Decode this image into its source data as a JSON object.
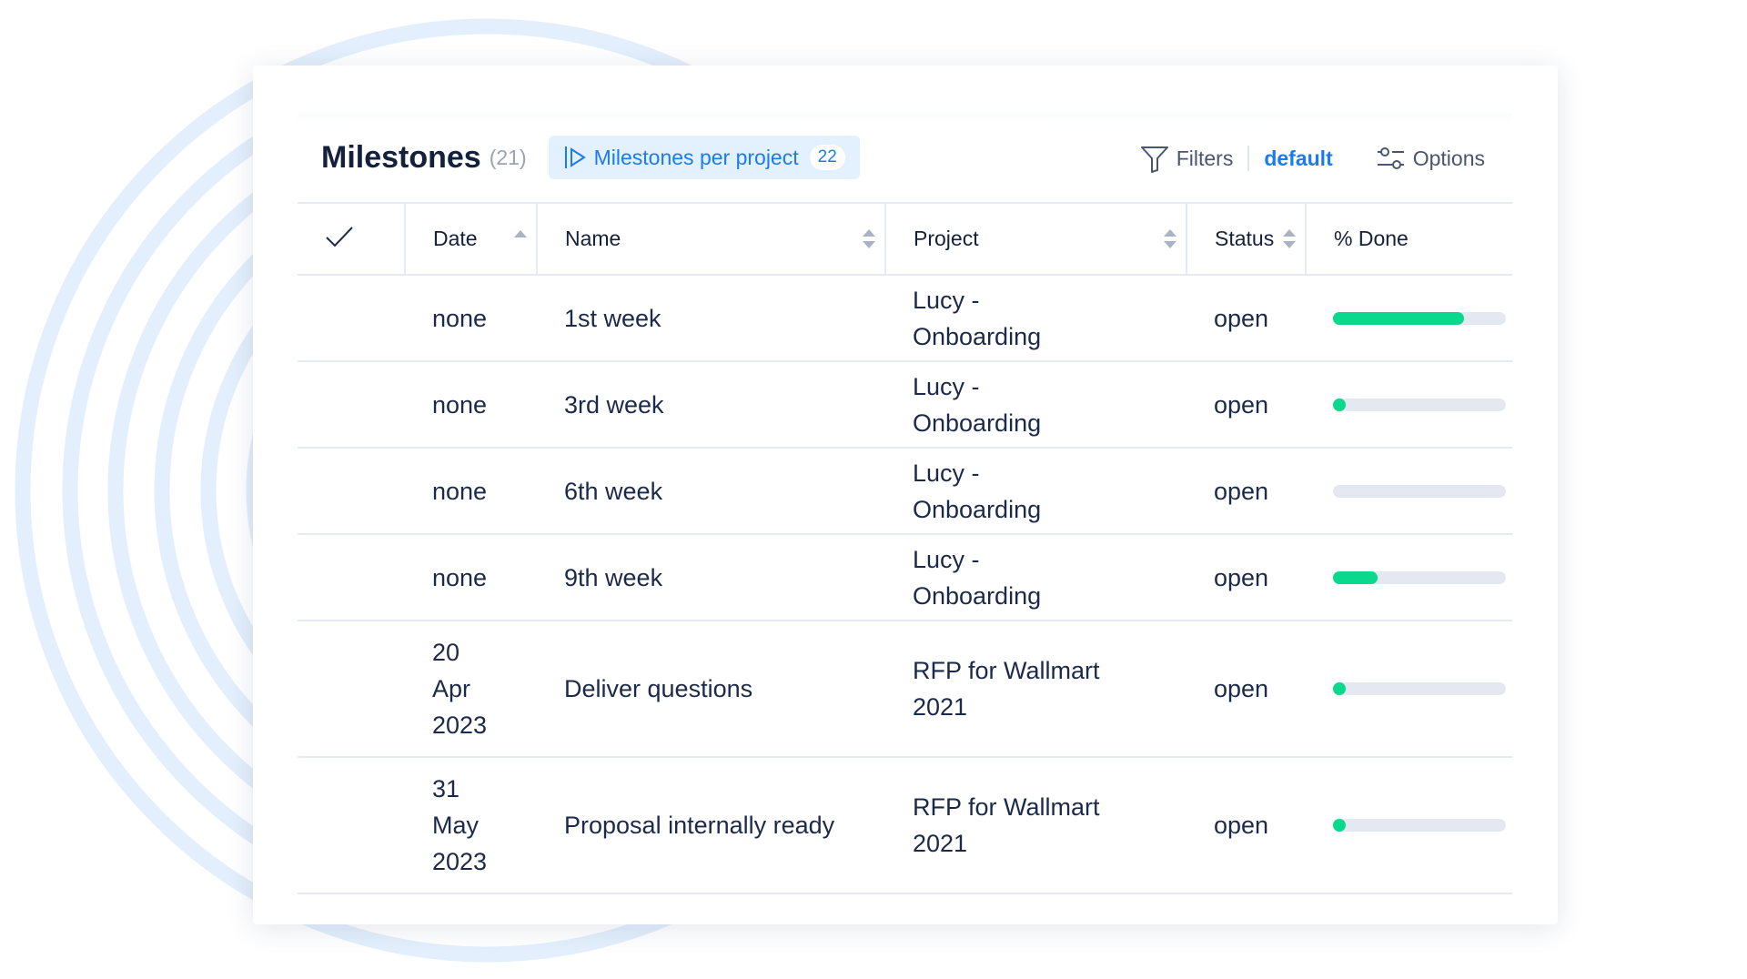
{
  "header": {
    "title": "Milestones",
    "count": "(21)",
    "tab_label": "Milestones per project",
    "tab_badge": "22",
    "filters_label": "Filters",
    "filter_preset": "default",
    "options_label": "Options"
  },
  "columns": {
    "check": "✓",
    "date": "Date",
    "name": "Name",
    "project": "Project",
    "status": "Status",
    "done": "% Done"
  },
  "rows": [
    {
      "date": "none",
      "name": "1st week",
      "project": "Lucy - Onboarding",
      "status": "open",
      "done_pct": 76
    },
    {
      "date": "none",
      "name": "3rd week",
      "project": "Lucy - Onboarding",
      "status": "open",
      "done_pct": 4
    },
    {
      "date": "none",
      "name": "6th week",
      "project": "Lucy - Onboarding",
      "status": "open",
      "done_pct": 0
    },
    {
      "date": "none",
      "name": "9th week",
      "project": "Lucy - Onboarding",
      "status": "open",
      "done_pct": 26
    },
    {
      "date": "20 Apr 2023",
      "name": "Deliver questions",
      "project": "RFP for Wallmart 2021",
      "status": "open",
      "done_pct": 5
    },
    {
      "date": "31 May 2023",
      "name": "Proposal internally ready",
      "project": "RFP for Wallmart 2021",
      "status": "open",
      "done_pct": 4
    }
  ],
  "colors": {
    "accent": "#1a7cf0",
    "progress": "#08d98d",
    "ring": "#e3effc"
  }
}
